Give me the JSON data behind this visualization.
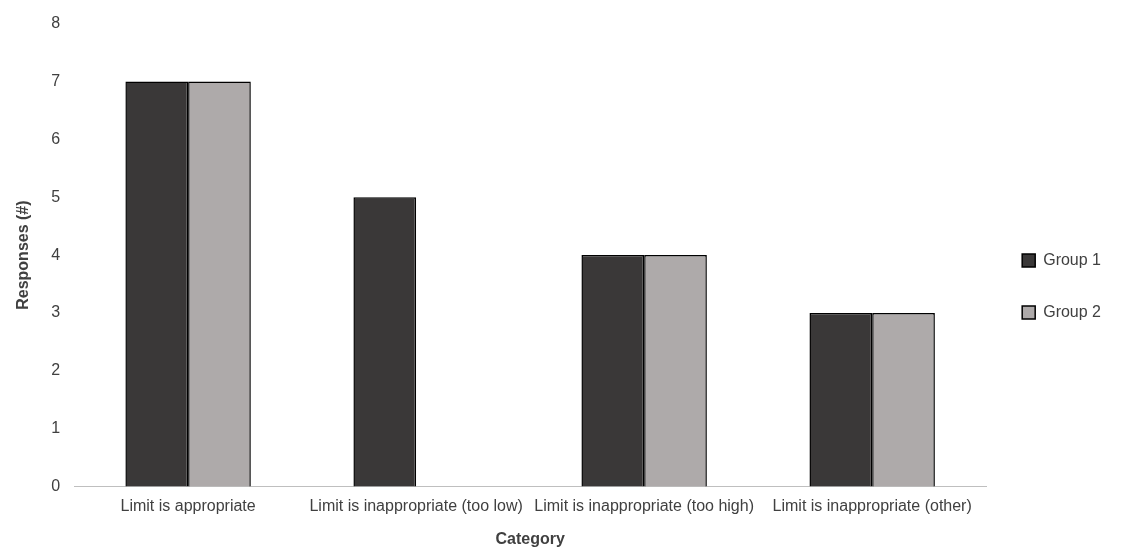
{
  "chart_data": {
    "type": "bar",
    "xlabel": "Category",
    "ylabel": "Responses (#)",
    "categories": [
      "Limit is appropriate",
      "Limit is inappropriate (too low)",
      "Limit is inappropriate (too high)",
      "Limit is inappropriate (other)"
    ],
    "series": [
      {
        "name": "Group 1",
        "color": "#3a3838",
        "values": [
          7,
          5,
          4,
          3
        ]
      },
      {
        "name": "Group 2",
        "color": "#aeaaaa",
        "values": [
          7,
          0,
          4,
          3
        ]
      }
    ],
    "ylim": [
      0,
      8
    ],
    "yticks": [
      0,
      1,
      2,
      3,
      4,
      5,
      6,
      7,
      8
    ],
    "grid": false,
    "legend": "right"
  }
}
